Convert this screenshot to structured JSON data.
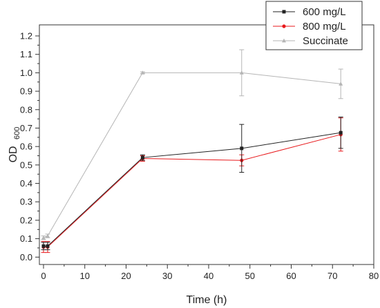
{
  "chart_data": {
    "type": "line",
    "xlabel": "Time (h)",
    "ylabel": "OD",
    "ylabel_subscript": "600",
    "xlim": [
      -1,
      80
    ],
    "ylim": [
      -0.04,
      1.26
    ],
    "x_ticks": [
      0,
      10,
      20,
      30,
      40,
      50,
      60,
      70,
      80
    ],
    "y_ticks": [
      0.0,
      0.1,
      0.2,
      0.3,
      0.4,
      0.5,
      0.6,
      0.7,
      0.8,
      0.9,
      1.0,
      1.1,
      1.2
    ],
    "y_tick_labels": [
      "0.0",
      "0.1",
      "0.2",
      "0.3",
      "0.4",
      "0.5",
      "0.6",
      "0.7",
      "0.8",
      "0.9",
      "1.0",
      "1.1",
      "1.2"
    ],
    "legend_position": "top-right",
    "series": [
      {
        "name": "600 mg/L",
        "color": "#222222",
        "marker": "square",
        "x": [
          0,
          1,
          24,
          48,
          72
        ],
        "y": [
          0.06,
          0.06,
          0.54,
          0.59,
          0.675
        ],
        "err": [
          0.02,
          0.02,
          0.015,
          0.13,
          0.085
        ]
      },
      {
        "name": "800 mg/L",
        "color": "#e8191c",
        "marker": "circle",
        "x": [
          0,
          1,
          24,
          48,
          72
        ],
        "y": [
          0.055,
          0.055,
          0.535,
          0.525,
          0.665
        ],
        "err": [
          0.03,
          0.03,
          0.015,
          0.03,
          0.09
        ]
      },
      {
        "name": "Succinate",
        "color": "#b5b5b5",
        "marker": "triangle",
        "x": [
          0,
          1,
          24,
          48,
          72
        ],
        "y": [
          0.105,
          0.115,
          1.0,
          1.0,
          0.94
        ],
        "err": [
          0.01,
          0.01,
          0.005,
          0.125,
          0.08
        ]
      }
    ]
  }
}
